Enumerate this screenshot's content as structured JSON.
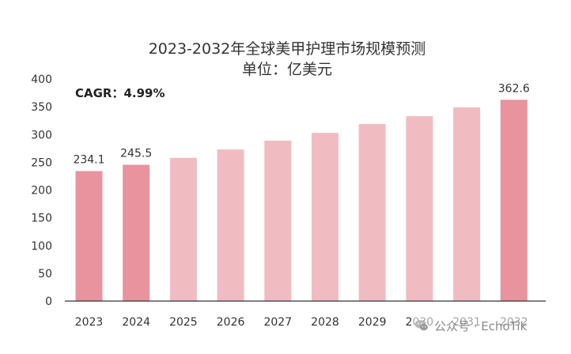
{
  "chart_data": {
    "type": "bar",
    "title": "2023-2032年全球美甲护理市场规模预测",
    "subtitle": "单位：亿美元",
    "annotation": "CAGR：4.99%",
    "categories": [
      "2023",
      "2024",
      "2025",
      "2026",
      "2027",
      "2028",
      "2029",
      "2030",
      "2031",
      "2032"
    ],
    "values": [
      234.1,
      245.5,
      258.0,
      273.0,
      289.0,
      303.0,
      319.0,
      333.0,
      349.0,
      362.6
    ],
    "data_labels": [
      "234.1",
      "245.5",
      "",
      "",
      "",
      "",
      "",
      "",
      "",
      "362.6"
    ],
    "highlight_indices": [
      0,
      1,
      9
    ],
    "ylim": [
      0,
      400
    ],
    "yticks": [
      0,
      50,
      100,
      150,
      200,
      250,
      300,
      350,
      400
    ],
    "grid": false,
    "colors": {
      "highlight": "#e8939e",
      "normal": "#f0bcc2",
      "axis": "#333333"
    }
  },
  "watermark": {
    "text": "公众号 · EchoTik",
    "icon": "wechat-icon"
  }
}
